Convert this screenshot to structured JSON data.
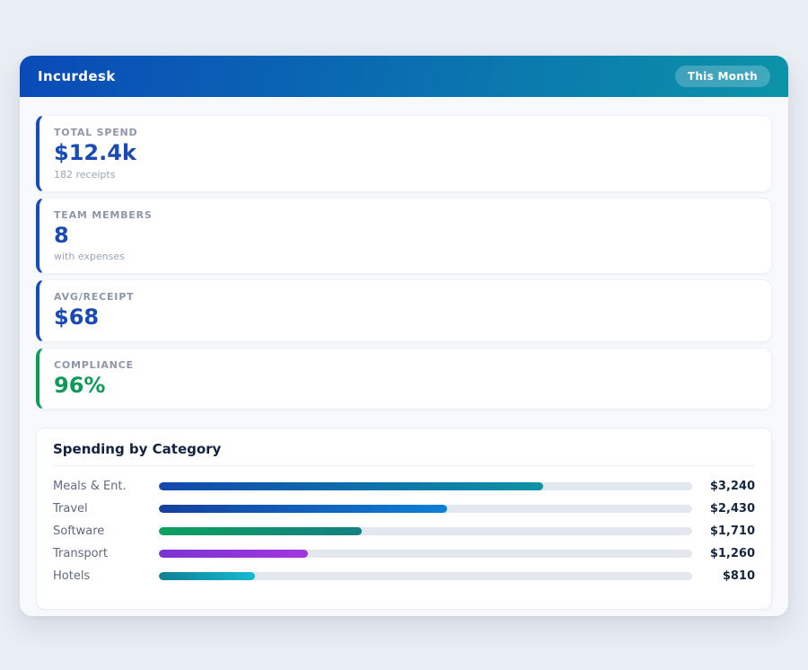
{
  "page": {
    "background": "#e9edf4"
  },
  "header": {
    "title": "Incurdesk",
    "badge_label": "This Month",
    "gradient_from": "#0a4ab8",
    "gradient_to": "#0b93a8"
  },
  "stats": [
    {
      "label": "TOTAL SPEND",
      "value": "$12.4k",
      "sub": "182 receipts",
      "accent": "#1a4ab3"
    },
    {
      "label": "TEAM MEMBERS",
      "value": "8",
      "sub": "with expenses",
      "accent": "#1a4ab3"
    },
    {
      "label": "AVG/RECEIPT",
      "value": "$68",
      "sub": "",
      "accent": "#1a4ab3"
    },
    {
      "label": "COMPLIANCE",
      "value": "96%",
      "sub": "",
      "accent": "#0d9b57"
    }
  ],
  "chart": {
    "title": "Spending by Category"
  },
  "chart_data": {
    "type": "bar",
    "orientation": "horizontal",
    "title": "Spending by Category",
    "categories": [
      "Meals & Ent.",
      "Travel",
      "Software",
      "Transport",
      "Hotels"
    ],
    "values": [
      3240,
      2430,
      1710,
      1260,
      810
    ],
    "value_labels": [
      "$3,240",
      "$2,430",
      "$1,710",
      "$1,260",
      "$810"
    ],
    "scale_max": 4500,
    "xlim": [
      0,
      4500
    ],
    "grid": false,
    "legend": false,
    "bar_gradients": [
      [
        "#1149ae",
        "#0b93a6"
      ],
      [
        "#173f9e",
        "#0b80d8"
      ],
      [
        "#0ea05e",
        "#157f83"
      ],
      [
        "#7b33d1",
        "#a136e0"
      ],
      [
        "#0f7f96",
        "#17b9d3"
      ]
    ]
  }
}
